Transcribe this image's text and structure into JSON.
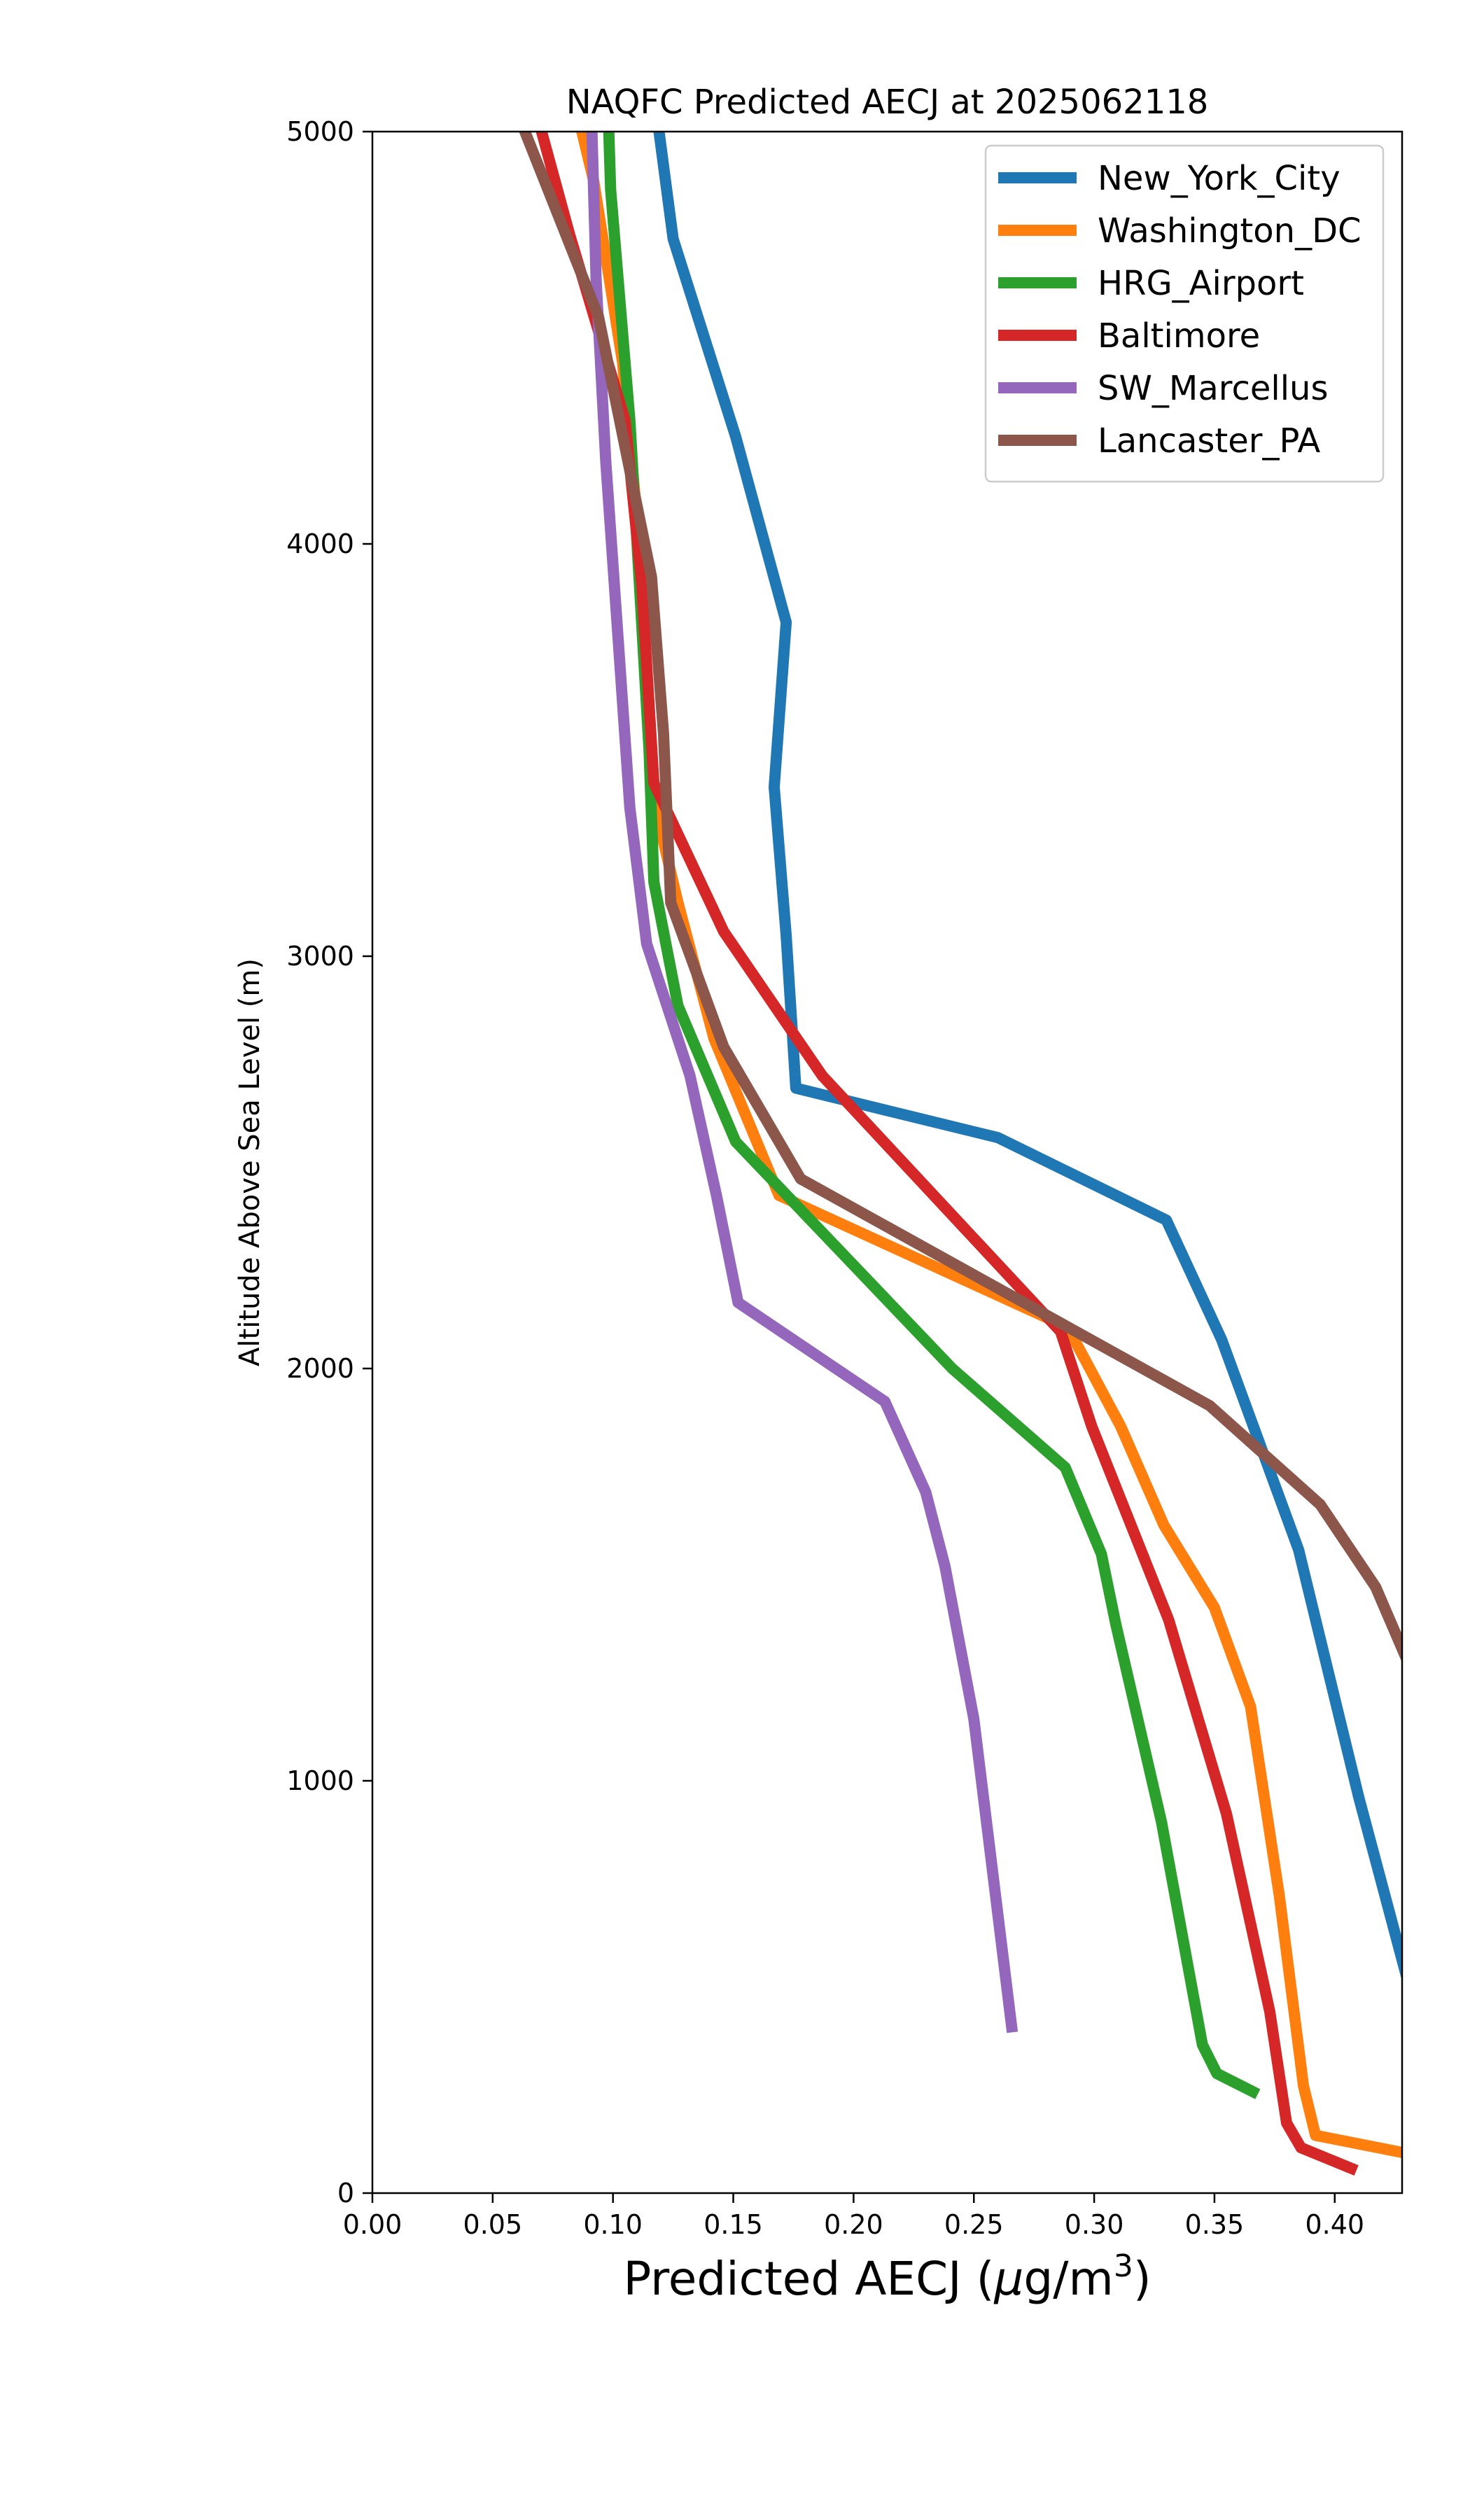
{
  "chart_data": {
    "type": "line",
    "title": "NAQFC Predicted AECJ at 2025062118",
    "xlabel": "Predicted AECJ (",
    "xlabel_unit_prefix": "μ",
    "xlabel_unit_base": "g/m",
    "xlabel_unit_exp": "3",
    "xlabel_close": ")",
    "ylabel": "Altitude Above Sea Level (m)",
    "xlim": [
      0.0,
      0.428
    ],
    "ylim": [
      0,
      5000
    ],
    "xticks": [
      "0.00",
      "0.05",
      "0.10",
      "0.15",
      "0.20",
      "0.25",
      "0.30",
      "0.35",
      "0.40"
    ],
    "xtick_values": [
      0.0,
      0.05,
      0.1,
      0.15,
      0.2,
      0.25,
      0.3,
      0.35,
      0.4
    ],
    "yticks": [
      "0",
      "1000",
      "2000",
      "3000",
      "4000",
      "5000"
    ],
    "ytick_values": [
      0,
      1000,
      2000,
      3000,
      4000,
      5000
    ],
    "grid": false,
    "legend_position": "top-right",
    "series": [
      {
        "name": "New_York_City",
        "color": "#1f77b4",
        "points": [
          [
            0.431,
            500
          ],
          [
            0.41,
            960
          ],
          [
            0.385,
            1560
          ],
          [
            0.353,
            2070
          ],
          [
            0.33,
            2360
          ],
          [
            0.26,
            2560
          ],
          [
            0.176,
            2680
          ],
          [
            0.172,
            3050
          ],
          [
            0.167,
            3410
          ],
          [
            0.172,
            3810
          ],
          [
            0.151,
            4260
          ],
          [
            0.125,
            4740
          ],
          [
            0.118,
            5050
          ]
        ]
      },
      {
        "name": "Washington_DC",
        "color": "#ff7f0e",
        "points": [
          [
            0.431,
            95
          ],
          [
            0.392,
            140
          ],
          [
            0.387,
            260
          ],
          [
            0.377,
            720
          ],
          [
            0.365,
            1180
          ],
          [
            0.35,
            1420
          ],
          [
            0.329,
            1620
          ],
          [
            0.311,
            1860
          ],
          [
            0.289,
            2100
          ],
          [
            0.169,
            2420
          ],
          [
            0.142,
            2800
          ],
          [
            0.127,
            3130
          ],
          [
            0.116,
            3400
          ],
          [
            0.111,
            4000
          ],
          [
            0.104,
            4440
          ],
          [
            0.092,
            4880
          ],
          [
            0.085,
            5050
          ]
        ]
      },
      {
        "name": "HRG_Airport",
        "color": "#2ca02c",
        "points": [
          [
            0.368,
            240
          ],
          [
            0.351,
            290
          ],
          [
            0.345,
            360
          ],
          [
            0.328,
            900
          ],
          [
            0.309,
            1380
          ],
          [
            0.303,
            1550
          ],
          [
            0.288,
            1760
          ],
          [
            0.241,
            2000
          ],
          [
            0.151,
            2550
          ],
          [
            0.127,
            2880
          ],
          [
            0.117,
            3180
          ],
          [
            0.115,
            3500
          ],
          [
            0.107,
            4300
          ],
          [
            0.099,
            4860
          ],
          [
            0.098,
            5050
          ]
        ]
      },
      {
        "name": "Baltimore",
        "color": "#d62728",
        "points": [
          [
            0.409,
            55
          ],
          [
            0.386,
            110
          ],
          [
            0.38,
            170
          ],
          [
            0.373,
            440
          ],
          [
            0.355,
            920
          ],
          [
            0.331,
            1390
          ],
          [
            0.299,
            1860
          ],
          [
            0.286,
            2090
          ],
          [
            0.187,
            2710
          ],
          [
            0.146,
            3060
          ],
          [
            0.117,
            3420
          ],
          [
            0.112,
            3900
          ],
          [
            0.105,
            4300
          ],
          [
            0.082,
            4750
          ],
          [
            0.068,
            5050
          ]
        ]
      },
      {
        "name": "SW_Marcellus",
        "color": "#9467bd",
        "points": [
          [
            0.266,
            390
          ],
          [
            0.25,
            1150
          ],
          [
            0.238,
            1520
          ],
          [
            0.23,
            1700
          ],
          [
            0.213,
            1920
          ],
          [
            0.152,
            2160
          ],
          [
            0.143,
            2420
          ],
          [
            0.132,
            2710
          ],
          [
            0.114,
            3030
          ],
          [
            0.107,
            3360
          ],
          [
            0.097,
            4200
          ],
          [
            0.093,
            4640
          ],
          [
            0.091,
            5050
          ]
        ]
      },
      {
        "name": "Lancaster_PA",
        "color": "#8c564b",
        "points": [
          [
            0.431,
            1280
          ],
          [
            0.417,
            1470
          ],
          [
            0.394,
            1670
          ],
          [
            0.348,
            1910
          ],
          [
            0.178,
            2460
          ],
          [
            0.146,
            2780
          ],
          [
            0.124,
            3130
          ],
          [
            0.121,
            3540
          ],
          [
            0.116,
            3920
          ],
          [
            0.094,
            4550
          ],
          [
            0.06,
            5050
          ]
        ]
      }
    ]
  }
}
